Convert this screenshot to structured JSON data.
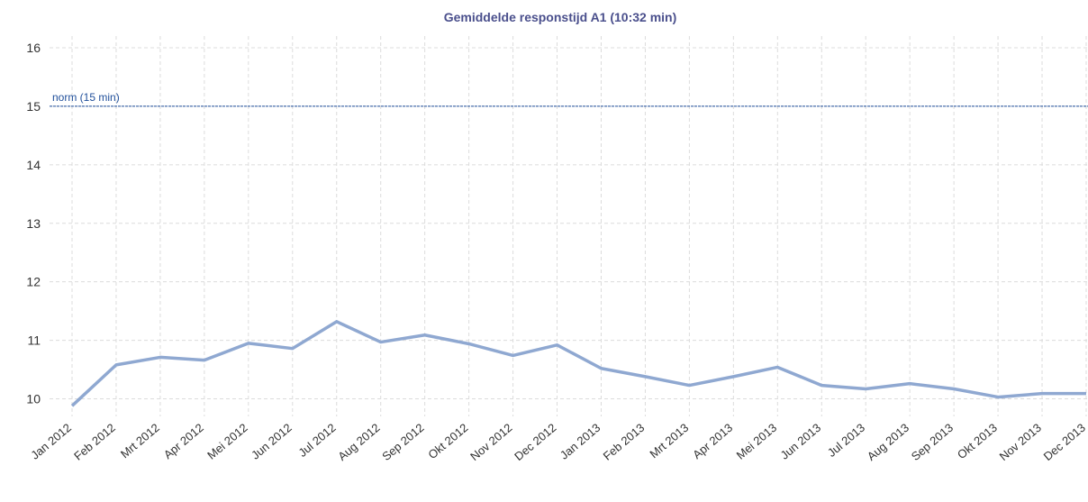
{
  "chart_data": {
    "type": "line",
    "title": "Gemiddelde responstijd A1 (10:32 min)",
    "categories": [
      "Jan 2012",
      "Feb 2012",
      "Mrt 2012",
      "Apr 2012",
      "Mei 2012",
      "Jun 2012",
      "Jul 2012",
      "Aug 2012",
      "Sep 2012",
      "Okt 2012",
      "Nov 2012",
      "Dec 2012",
      "Jan 2013",
      "Feb 2013",
      "Mrt 2013",
      "Apr 2013",
      "Mei 2013",
      "Jun 2013",
      "Jul 2013",
      "Aug 2013",
      "Sep 2013",
      "Okt 2013",
      "Nov 2013",
      "Dec 2013"
    ],
    "series": [
      {
        "name": "Gemiddelde responstijd A1",
        "color": "#8fa8d1",
        "values": [
          9.88,
          10.58,
          10.71,
          10.66,
          10.95,
          10.86,
          11.32,
          10.97,
          11.09,
          10.94,
          10.74,
          10.92,
          10.52,
          10.38,
          10.23,
          10.38,
          10.54,
          10.23,
          10.17,
          10.26,
          10.17,
          10.03,
          10.09,
          10.09
        ]
      }
    ],
    "ylim": [
      9.7,
      16.2
    ],
    "yticks": [
      10,
      11,
      12,
      13,
      14,
      15,
      16
    ],
    "grid": true,
    "reference_line": {
      "label": "norm (15 min)",
      "value": 15,
      "color": "#1f4e9a"
    }
  }
}
